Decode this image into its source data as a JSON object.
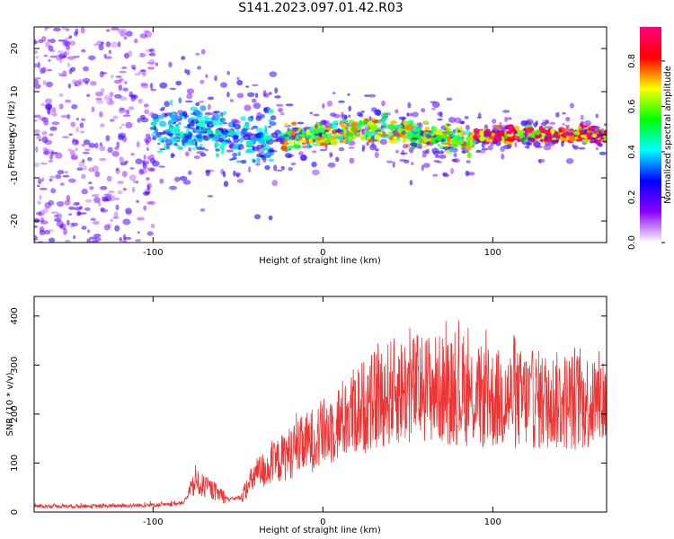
{
  "title": "S141.2023.097.01.42.R03",
  "chart_data": [
    {
      "type": "heatmap",
      "xlabel": "Height of straight line (km)",
      "ylabel": "Frequency (Hz)",
      "xlim": [
        -170,
        167
      ],
      "ylim": [
        -25,
        25
      ],
      "xticks": [
        -100,
        0,
        100
      ],
      "yticks": [
        -20,
        -10,
        0,
        10,
        20
      ],
      "colorbar": {
        "label": "Normalized spectral amplitude",
        "range": [
          0,
          0.95
        ],
        "ticks": [
          "0.0",
          "0.2",
          "0.4",
          "0.6",
          "0.8"
        ],
        "tick_values": [
          0,
          0.2,
          0.4,
          0.6,
          0.8
        ],
        "colormap": [
          "#ffffff",
          "#8c00ff",
          "#0000ff",
          "#00ffff",
          "#00ff00",
          "#ffff00",
          "#ff0000",
          "#ff007f"
        ]
      },
      "regions": [
        {
          "x": [
            -170,
            -100
          ],
          "description": "scattered low-amplitude noise",
          "amplitude": 0.15
        },
        {
          "x": [
            -100,
            -25
          ],
          "description": "ridge near 0 Hz with spread",
          "amplitude": 0.4
        },
        {
          "x": [
            -25,
            90
          ],
          "description": "narrow ridge near 0 Hz",
          "amplitude": 0.65
        },
        {
          "x": [
            90,
            167
          ],
          "description": "strong narrow ridge at 0 Hz",
          "amplitude": 0.9
        }
      ]
    },
    {
      "type": "line",
      "xlabel": "Height of straight line (km)",
      "ylabel": "SNR (10 * v/v)",
      "xlim": [
        -170,
        167
      ],
      "ylim": [
        0,
        440
      ],
      "xticks": [
        -100,
        0,
        100
      ],
      "yticks": [
        0,
        100,
        200,
        300,
        400
      ],
      "color": "#ee3333",
      "series": [
        {
          "x": [
            -170,
            -130,
            -90,
            -82,
            -75,
            -65,
            -55,
            -48,
            -40,
            -30,
            -20,
            -10,
            0,
            10,
            20,
            30,
            40,
            50,
            60,
            70,
            80,
            90,
            100,
            110,
            120,
            130,
            140,
            150,
            160,
            167
          ],
          "y": [
            12,
            12,
            15,
            20,
            60,
            45,
            25,
            30,
            75,
            95,
            120,
            140,
            160,
            185,
            210,
            225,
            245,
            250,
            255,
            250,
            245,
            235,
            230,
            232,
            230,
            228,
            226,
            228,
            225,
            230
          ]
        }
      ]
    }
  ]
}
